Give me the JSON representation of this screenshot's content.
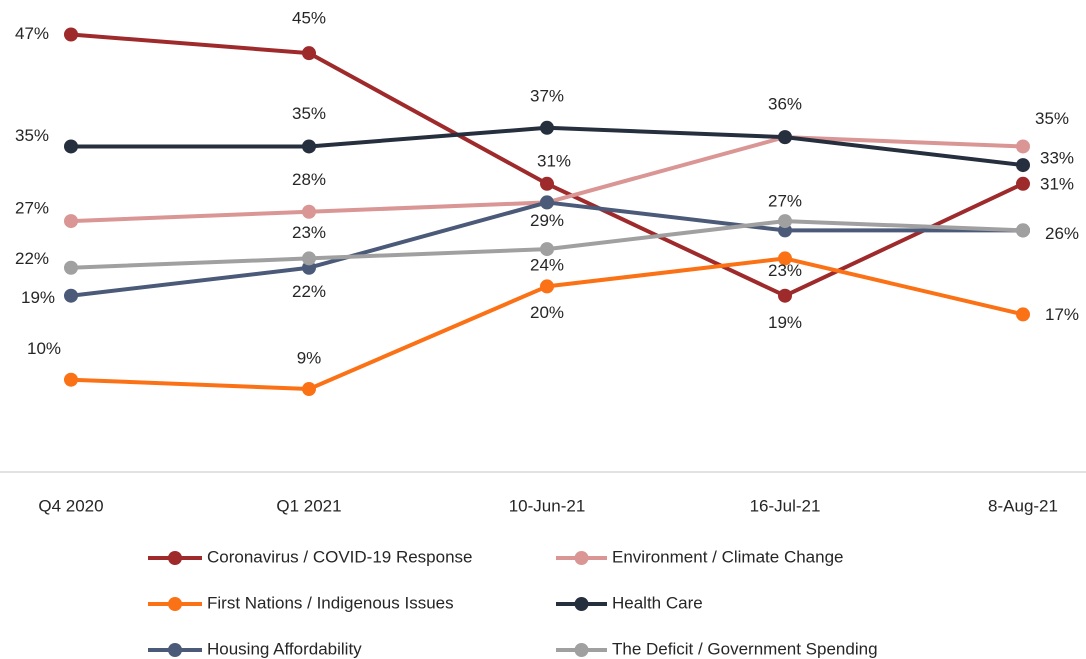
{
  "chart_data": {
    "type": "line",
    "categories": [
      "Q4 2020",
      "Q1 2021",
      "10-Jun-21",
      "16-Jul-21",
      "8-Aug-21"
    ],
    "ylim": [
      0,
      50
    ],
    "series": [
      {
        "name": "Coronavirus / COVID-19 Response",
        "color": "#9e2a2b",
        "values": [
          47,
          45,
          31,
          19,
          31
        ],
        "value_labels": [
          "47%",
          "45%",
          "31%",
          "19%",
          "31%"
        ]
      },
      {
        "name": "Environment / Climate Change",
        "color": "#d99694",
        "values": [
          27,
          28,
          29,
          36,
          35
        ],
        "value_labels": [
          "27%",
          "28%",
          null,
          null,
          "35%"
        ]
      },
      {
        "name": "First Nations / Indigenous Issues",
        "color": "#fb7115",
        "values": [
          10,
          9,
          20,
          23,
          17
        ],
        "value_labels": [
          "10%",
          "9%",
          "20%",
          "23%",
          "17%"
        ]
      },
      {
        "name": "Health Care",
        "color": "#252f3e",
        "values": [
          35,
          35,
          37,
          36,
          33
        ],
        "value_labels": [
          "35%",
          "35%",
          "37%",
          "36%",
          "33%"
        ]
      },
      {
        "name": "Housing Affordability",
        "color": "#4b5a78",
        "values": [
          19,
          22,
          29,
          26,
          26
        ],
        "value_labels": [
          "19%",
          "22%",
          "29%",
          null,
          null
        ]
      },
      {
        "name": "The Deficit / Government Spending",
        "color": "#a0a0a0",
        "values": [
          22,
          23,
          24,
          27,
          26
        ],
        "value_labels": [
          "22%",
          "23%",
          "24%",
          "27%",
          "26%"
        ]
      }
    ]
  }
}
